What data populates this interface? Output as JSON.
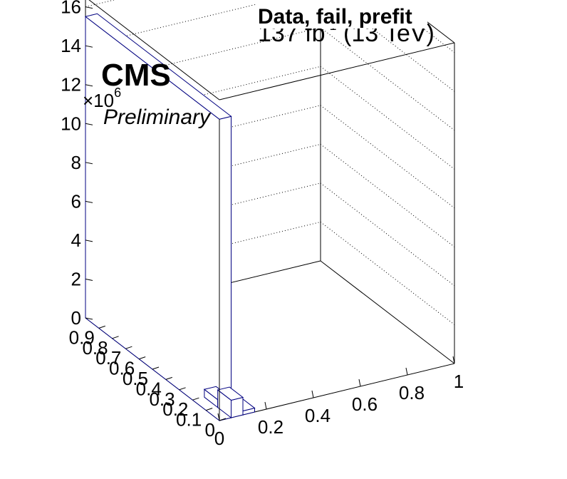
{
  "chart_data": {
    "type": "lego3d",
    "title": "Data, fail, prefit",
    "lumi_label": "137 fb",
    "lumi_exponent": "-1",
    "energy_label": "(13 TeV)",
    "experiment": "CMS",
    "status": "Preliminary",
    "z_multiplier": "×10",
    "z_multiplier_exponent": "6",
    "z_ticks": [
      "0",
      "2",
      "4",
      "6",
      "8",
      "10",
      "12",
      "14",
      "16"
    ],
    "y_ticks": [
      "0",
      "0.1",
      "0.2",
      "0.3",
      "0.4",
      "0.5",
      "0.6",
      "0.7",
      "0.8",
      "0.9"
    ],
    "x_ticks": [
      "0",
      "0.2",
      "0.4",
      "0.6",
      "0.8",
      "1"
    ],
    "zlim": [
      0,
      16.5
    ],
    "xlim": [
      0,
      1
    ],
    "ylim": [
      0,
      1
    ],
    "bars": [
      {
        "x0": 0.0,
        "x1": 0.05,
        "y0": 0.0,
        "y1": 1.0,
        "z": 15.5
      },
      {
        "x0": 0.05,
        "x1": 0.1,
        "y0": 0.0,
        "y1": 0.1,
        "z": 0.9
      },
      {
        "x0": 0.05,
        "x1": 0.1,
        "y0": 0.1,
        "y1": 0.2,
        "z": 0.4
      },
      {
        "x0": 0.1,
        "x1": 0.15,
        "y0": 0.0,
        "y1": 0.1,
        "z": 0.2
      }
    ],
    "colors": {
      "frame": "#000000",
      "bar_outline": "#000080",
      "bar_fill": "#ffffff"
    }
  }
}
